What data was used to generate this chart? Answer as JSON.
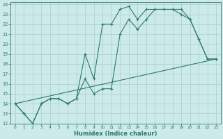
{
  "xlabel": "Humidex (Indice chaleur)",
  "bg_color": "#cceaea",
  "grid_color": "#aacccc",
  "line_color": "#2d7a6a",
  "xlim": [
    -0.5,
    23.5
  ],
  "ylim": [
    12,
    24.2
  ],
  "xticks": [
    0,
    1,
    2,
    3,
    4,
    5,
    6,
    7,
    8,
    9,
    10,
    11,
    12,
    13,
    14,
    15,
    16,
    17,
    18,
    19,
    20,
    21,
    22,
    23
  ],
  "yticks": [
    12,
    13,
    14,
    15,
    16,
    17,
    18,
    19,
    20,
    21,
    22,
    23,
    24
  ],
  "line1_x": [
    0,
    1,
    2,
    3,
    4,
    5,
    6,
    7,
    8,
    9,
    10,
    11,
    12,
    13,
    14,
    15,
    16,
    17,
    18,
    19,
    20,
    21,
    22,
    23
  ],
  "line1_y": [
    14.0,
    13.0,
    12.0,
    14.0,
    14.5,
    14.5,
    14.0,
    14.5,
    19.0,
    16.5,
    22.0,
    22.0,
    23.5,
    23.8,
    22.5,
    23.5,
    23.5,
    23.5,
    23.5,
    23.0,
    22.5,
    20.5,
    18.5,
    18.5
  ],
  "line2_x": [
    0,
    1,
    2,
    3,
    4,
    5,
    6,
    7,
    8,
    9,
    10,
    11,
    12,
    13,
    14,
    15,
    16,
    17,
    18,
    19,
    20,
    21,
    22,
    23
  ],
  "line2_y": [
    14.0,
    13.0,
    12.0,
    14.0,
    14.5,
    14.5,
    14.0,
    14.5,
    16.5,
    15.0,
    15.5,
    15.5,
    21.0,
    22.5,
    21.5,
    22.5,
    23.5,
    23.5,
    23.5,
    23.5,
    22.5,
    20.5,
    18.5,
    18.5
  ],
  "line3_x": [
    0,
    23
  ],
  "line3_y": [
    14.0,
    18.5
  ],
  "tick_fontsize": 5.0,
  "xlabel_fontsize": 6.0
}
